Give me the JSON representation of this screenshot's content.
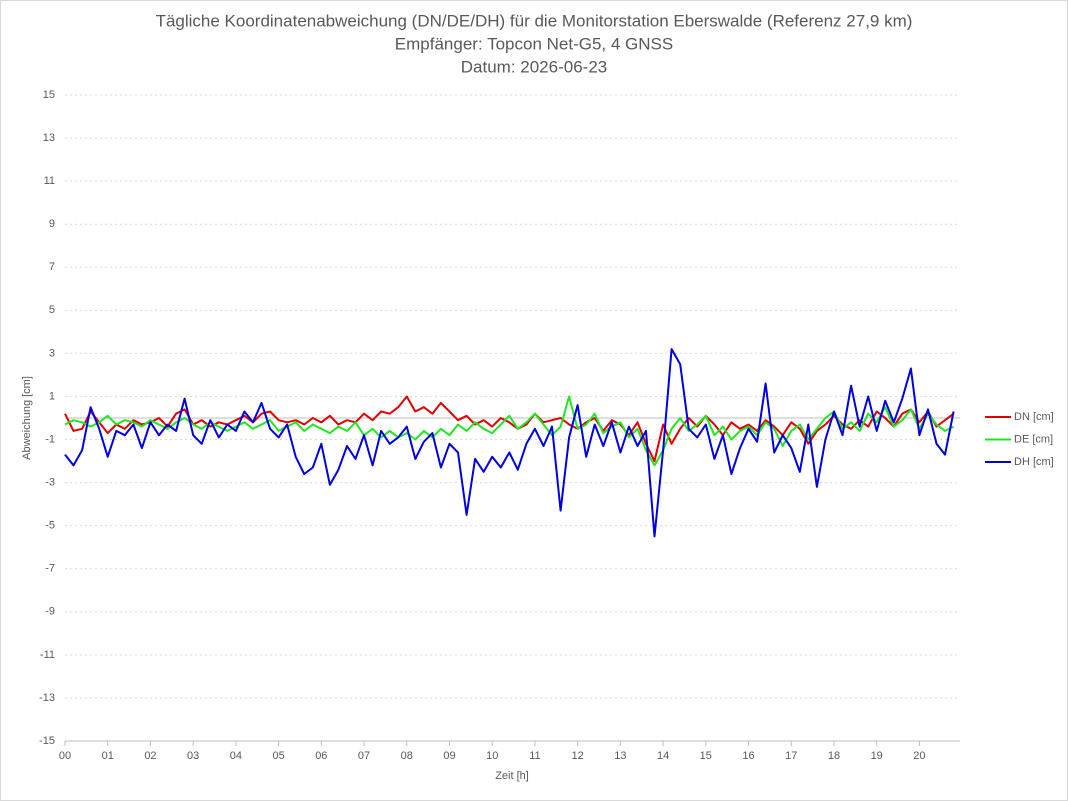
{
  "chart_data": {
    "type": "line",
    "title": "Tägliche Koordinatenabweichung (DN/DE/DH) für die Monitorstation Eberswalde (Referenz 27,9 km)",
    "subtitle": [
      "Empfänger: Topcon Net-G5, 4 GNSS",
      "Datum: 2026-06-23"
    ],
    "xlabel": "Zeit [h]",
    "ylabel": "Abweichung [cm]",
    "xlim": [
      0,
      20.95
    ],
    "ylim": [
      -15,
      15
    ],
    "xticks": [
      {
        "value": 0,
        "label": "00"
      },
      {
        "value": 1,
        "label": "01"
      },
      {
        "value": 2,
        "label": "02"
      },
      {
        "value": 3,
        "label": "03"
      },
      {
        "value": 4,
        "label": "04"
      },
      {
        "value": 5,
        "label": "05"
      },
      {
        "value": 6,
        "label": "06"
      },
      {
        "value": 7,
        "label": "07"
      },
      {
        "value": 8,
        "label": "08"
      },
      {
        "value": 9,
        "label": "09"
      },
      10,
      11,
      12,
      13,
      14,
      15,
      16,
      17,
      18,
      19,
      20
    ],
    "yticks": [
      -15,
      -13,
      -11,
      -9,
      -7,
      -5,
      -3,
      -1,
      1,
      3,
      5,
      7,
      9,
      11,
      13,
      15
    ],
    "grid": true,
    "legend": "right",
    "x": [
      0,
      0.2,
      0.4,
      0.6,
      0.8,
      1,
      1.2,
      1.4,
      1.6,
      1.8,
      2,
      2.2,
      2.4,
      2.6,
      2.8,
      3,
      3.2,
      3.4,
      3.6,
      3.8,
      4,
      4.2,
      4.4,
      4.6,
      4.8,
      5,
      5.2,
      5.4,
      5.6,
      5.8,
      6,
      6.2,
      6.4,
      6.6,
      6.8,
      7,
      7.2,
      7.4,
      7.6,
      7.8,
      8,
      8.2,
      8.4,
      8.6,
      8.8,
      9,
      9.2,
      9.4,
      9.6,
      9.8,
      10,
      10.2,
      10.4,
      10.6,
      10.8,
      11,
      11.2,
      11.4,
      11.6,
      11.8,
      12,
      12.2,
      12.4,
      12.6,
      12.8,
      13,
      13.2,
      13.4,
      13.6,
      13.8,
      14,
      14.2,
      14.4,
      14.6,
      14.8,
      15,
      15.2,
      15.4,
      15.6,
      15.8,
      16,
      16.2,
      16.4,
      16.6,
      16.8,
      17,
      17.2,
      17.4,
      17.6,
      17.8,
      18,
      18.2,
      18.4,
      18.6,
      18.8,
      19,
      19.2,
      19.4,
      19.6,
      19.8,
      20,
      20.2,
      20.4,
      20.6,
      20.8
    ],
    "series": [
      {
        "name": "DN [cm]",
        "color": "#e00000",
        "values": [
          0.2,
          -0.6,
          -0.5,
          0.3,
          -0.2,
          -0.7,
          -0.3,
          -0.5,
          -0.1,
          -0.3,
          -0.2,
          0.0,
          -0.4,
          0.2,
          0.4,
          -0.3,
          -0.1,
          -0.4,
          -0.2,
          -0.3,
          -0.1,
          0.1,
          -0.2,
          0.2,
          0.3,
          -0.1,
          -0.2,
          -0.1,
          -0.3,
          0.0,
          -0.2,
          0.1,
          -0.3,
          -0.1,
          -0.2,
          0.2,
          -0.1,
          0.3,
          0.2,
          0.5,
          1.0,
          0.3,
          0.5,
          0.2,
          0.7,
          0.3,
          -0.1,
          0.1,
          -0.3,
          -0.1,
          -0.4,
          0.0,
          -0.2,
          -0.5,
          -0.3,
          0.2,
          -0.2,
          -0.1,
          0.0,
          -0.3,
          -0.5,
          -0.2,
          0.0,
          -0.6,
          -0.1,
          -0.3,
          -0.8,
          -0.2,
          -1.2,
          -2.0,
          -0.3,
          -1.2,
          -0.5,
          0.0,
          -0.4,
          0.1,
          -0.3,
          -0.8,
          -0.2,
          -0.5,
          -0.3,
          -0.6,
          -0.1,
          -0.4,
          -0.8,
          -0.2,
          -0.5,
          -1.2,
          -0.6,
          -0.3,
          0.1,
          -0.3,
          -0.5,
          -0.1,
          -0.4,
          0.3,
          0.0,
          -0.4,
          0.2,
          0.4,
          -0.2,
          0.3,
          -0.4,
          -0.1,
          0.2
        ]
      },
      {
        "name": "DE [cm]",
        "color": "#22e622",
        "values": [
          -0.3,
          -0.1,
          -0.2,
          -0.4,
          -0.2,
          0.1,
          -0.3,
          -0.1,
          -0.2,
          -0.4,
          -0.1,
          -0.3,
          -0.5,
          -0.2,
          0.0,
          -0.3,
          -0.5,
          -0.2,
          -0.4,
          -0.6,
          -0.4,
          -0.2,
          -0.5,
          -0.3,
          -0.1,
          -0.6,
          -0.4,
          -0.2,
          -0.6,
          -0.3,
          -0.5,
          -0.7,
          -0.4,
          -0.6,
          -0.2,
          -0.8,
          -0.5,
          -0.9,
          -0.6,
          -0.9,
          -0.7,
          -1.0,
          -0.6,
          -0.9,
          -0.5,
          -0.8,
          -0.3,
          -0.6,
          -0.2,
          -0.5,
          -0.7,
          -0.3,
          0.1,
          -0.5,
          -0.2,
          0.2,
          -0.3,
          -0.8,
          -0.4,
          1.0,
          -0.5,
          -0.3,
          0.2,
          -0.7,
          -0.4,
          -0.2,
          -0.9,
          -0.5,
          -1.5,
          -2.2,
          -1.5,
          -0.5,
          0.0,
          -0.6,
          -0.3,
          0.1,
          -0.8,
          -0.4,
          -1.0,
          -0.6,
          -0.4,
          -0.8,
          -0.2,
          -0.5,
          -1.3,
          -0.6,
          -0.3,
          -1.0,
          -0.5,
          0.0,
          0.3,
          -0.5,
          -0.2,
          -0.6,
          0.2,
          -0.2,
          0.5,
          -0.4,
          -0.1,
          0.4,
          -0.5,
          0.2,
          -0.3,
          -0.6,
          -0.4
        ]
      },
      {
        "name": "DH [cm]",
        "color": "#0000e0",
        "values": [
          -1.7,
          -2.2,
          -1.5,
          0.5,
          -0.5,
          -1.8,
          -0.6,
          -0.8,
          -0.3,
          -1.4,
          -0.2,
          -0.8,
          -0.3,
          -0.6,
          0.9,
          -0.8,
          -1.2,
          -0.1,
          -0.9,
          -0.3,
          -0.6,
          0.3,
          -0.2,
          0.7,
          -0.5,
          -0.9,
          -0.3,
          -1.8,
          -2.6,
          -2.3,
          -1.2,
          -3.1,
          -2.4,
          -1.3,
          -1.9,
          -0.8,
          -2.2,
          -0.6,
          -1.2,
          -0.9,
          -0.4,
          -1.9,
          -1.1,
          -0.7,
          -2.3,
          -1.2,
          -1.6,
          -4.5,
          -1.9,
          -2.5,
          -1.8,
          -2.3,
          -1.6,
          -2.4,
          -1.2,
          -0.5,
          -1.3,
          -0.4,
          -4.3,
          -0.9,
          0.6,
          -1.8,
          -0.3,
          -1.3,
          -0.2,
          -1.6,
          -0.4,
          -1.3,
          -0.6,
          -5.5,
          -1.5,
          3.2,
          2.5,
          -0.5,
          -0.9,
          -0.3,
          -1.9,
          -0.8,
          -2.6,
          -1.4,
          -0.5,
          -1.1,
          1.6,
          -1.6,
          -0.8,
          -1.4,
          -2.5,
          -0.3,
          -3.2,
          -1.0,
          0.3,
          -0.8,
          1.5,
          -0.4,
          1.0,
          -0.6,
          0.8,
          -0.2,
          0.9,
          2.3,
          -0.8,
          0.4,
          -1.2,
          -1.7,
          0.3
        ]
      }
    ]
  }
}
